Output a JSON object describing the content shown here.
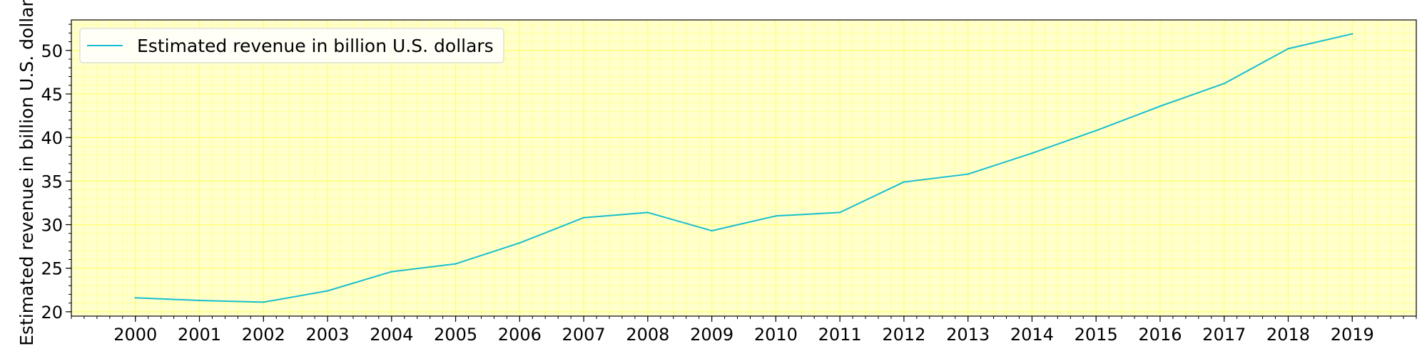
{
  "chart_data": {
    "type": "line",
    "title": "",
    "xlabel": "",
    "ylabel": "Estimated revenue in billion U.S. dollars",
    "x": [
      2000,
      2001,
      2002,
      2003,
      2004,
      2005,
      2006,
      2007,
      2008,
      2009,
      2010,
      2011,
      2012,
      2013,
      2014,
      2015,
      2016,
      2017,
      2018,
      2019
    ],
    "x_tick_labels": [
      "2000",
      "2001",
      "2002",
      "2003",
      "2004",
      "2005",
      "2006",
      "2007",
      "2008",
      "2009",
      "2010",
      "2011",
      "2012",
      "2013",
      "2014",
      "2015",
      "2016",
      "2017",
      "2018",
      "2019"
    ],
    "series": [
      {
        "name": "Estimated revenue in billion U.S. dollars",
        "color": "#17becf",
        "values": [
          21.6,
          21.3,
          21.1,
          22.4,
          24.6,
          25.5,
          27.9,
          30.8,
          31.4,
          29.3,
          31.0,
          31.4,
          34.9,
          35.8,
          38.2,
          40.8,
          43.6,
          46.2,
          50.2,
          51.9
        ]
      }
    ],
    "xlim": [
      1999.0,
      2020.0
    ],
    "ylim": [
      19.5,
      53.5
    ],
    "y_ticks": [
      20,
      25,
      30,
      35,
      40,
      45,
      50
    ],
    "y_tick_labels": [
      "20",
      "25",
      "30",
      "35",
      "40",
      "45",
      "50"
    ],
    "grid": true,
    "grid_color": "#ffff66",
    "background_color": "#ffffcc",
    "legend_position": "upper-left"
  }
}
